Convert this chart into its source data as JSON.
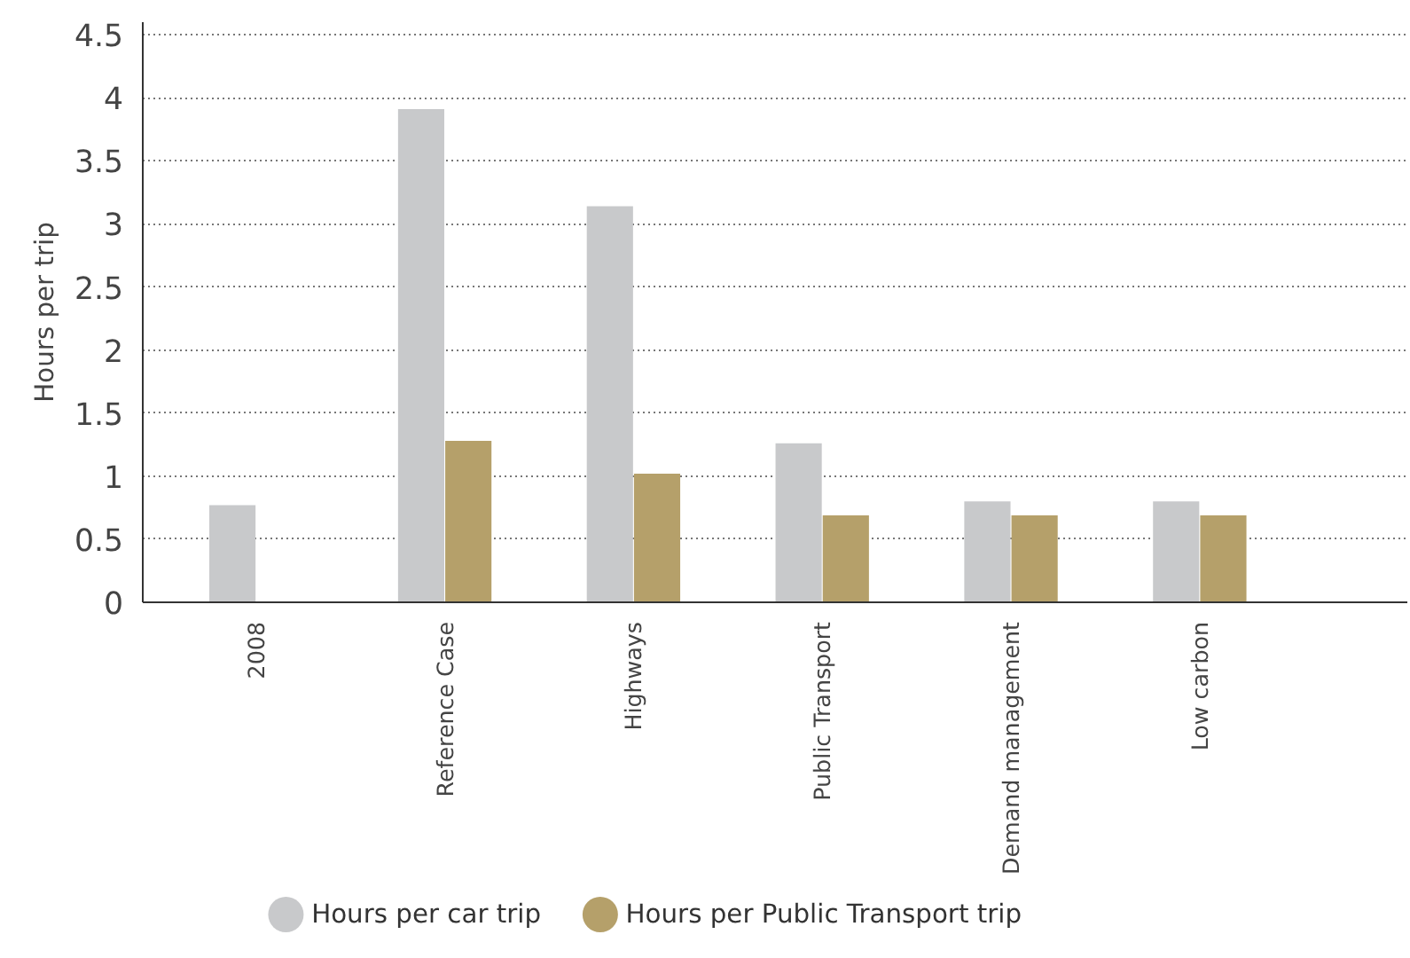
{
  "chart_data": {
    "type": "bar",
    "ylabel": "Hours per trip",
    "categories": [
      "2008",
      "Reference Case",
      "Highways",
      "Public Transport",
      "Demand management",
      "Low carbon"
    ],
    "series": [
      {
        "name": "Hours per car trip",
        "color": "#c8c9cb",
        "values": [
          0.77,
          3.91,
          3.14,
          1.26,
          0.8,
          0.8
        ]
      },
      {
        "name": "Hours per Public Transport trip",
        "color": "#b5a06a",
        "values": [
          null,
          1.28,
          1.02,
          0.69,
          0.69,
          0.69
        ]
      }
    ],
    "ylim": [
      0,
      4.6
    ],
    "yticks": [
      0,
      0.5,
      1,
      1.5,
      2,
      2.5,
      3,
      3.5,
      4,
      4.5
    ],
    "grid": "y",
    "legend": "bottom"
  }
}
